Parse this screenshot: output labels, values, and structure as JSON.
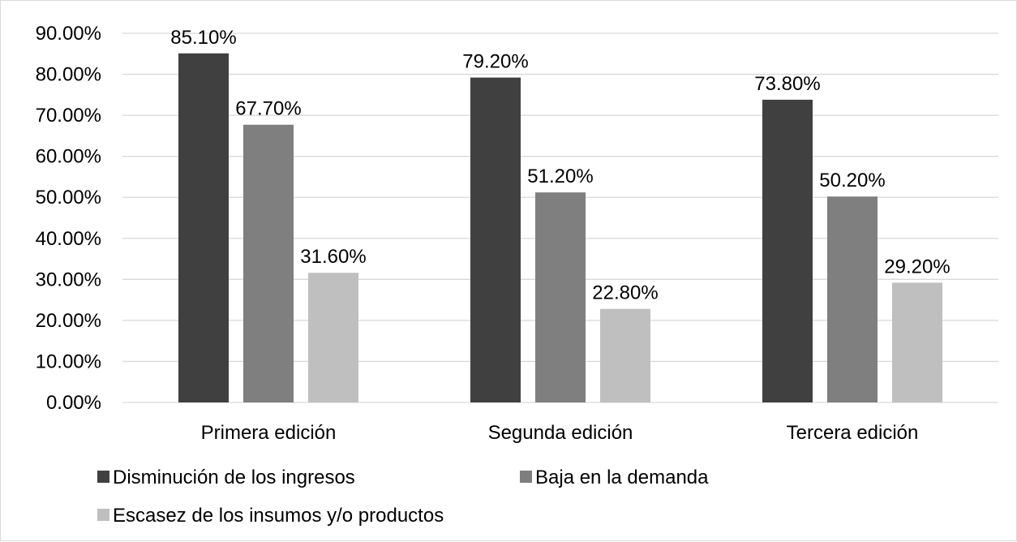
{
  "chart_data": {
    "type": "bar",
    "categories": [
      "Primera edición",
      "Segunda edición",
      "Tercera edición"
    ],
    "series": [
      {
        "name": "Disminución de los ingresos",
        "values": [
          85.1,
          79.2,
          73.8
        ],
        "color": "#404040"
      },
      {
        "name": "Baja en la demanda",
        "values": [
          67.7,
          51.2,
          50.2
        ],
        "color": "#7f7f7f"
      },
      {
        "name": "Escasez de los insumos y/o productos",
        "values": [
          31.6,
          22.8,
          29.2
        ],
        "color": "#bfbfbf"
      }
    ],
    "data_labels": [
      [
        "85.10%",
        "79.20%",
        "73.80%"
      ],
      [
        "67.70%",
        "51.20%",
        "50.20%"
      ],
      [
        "31.60%",
        "22.80%",
        "29.20%"
      ]
    ],
    "y_ticks": [
      "0.00%",
      "10.00%",
      "20.00%",
      "30.00%",
      "40.00%",
      "50.00%",
      "60.00%",
      "70.00%",
      "80.00%",
      "90.00%"
    ],
    "ylim": [
      0,
      90
    ],
    "title": "",
    "xlabel": "",
    "ylabel": "",
    "grid": true,
    "gridline_color": "#d9d9d9",
    "legend_position": "bottom"
  }
}
